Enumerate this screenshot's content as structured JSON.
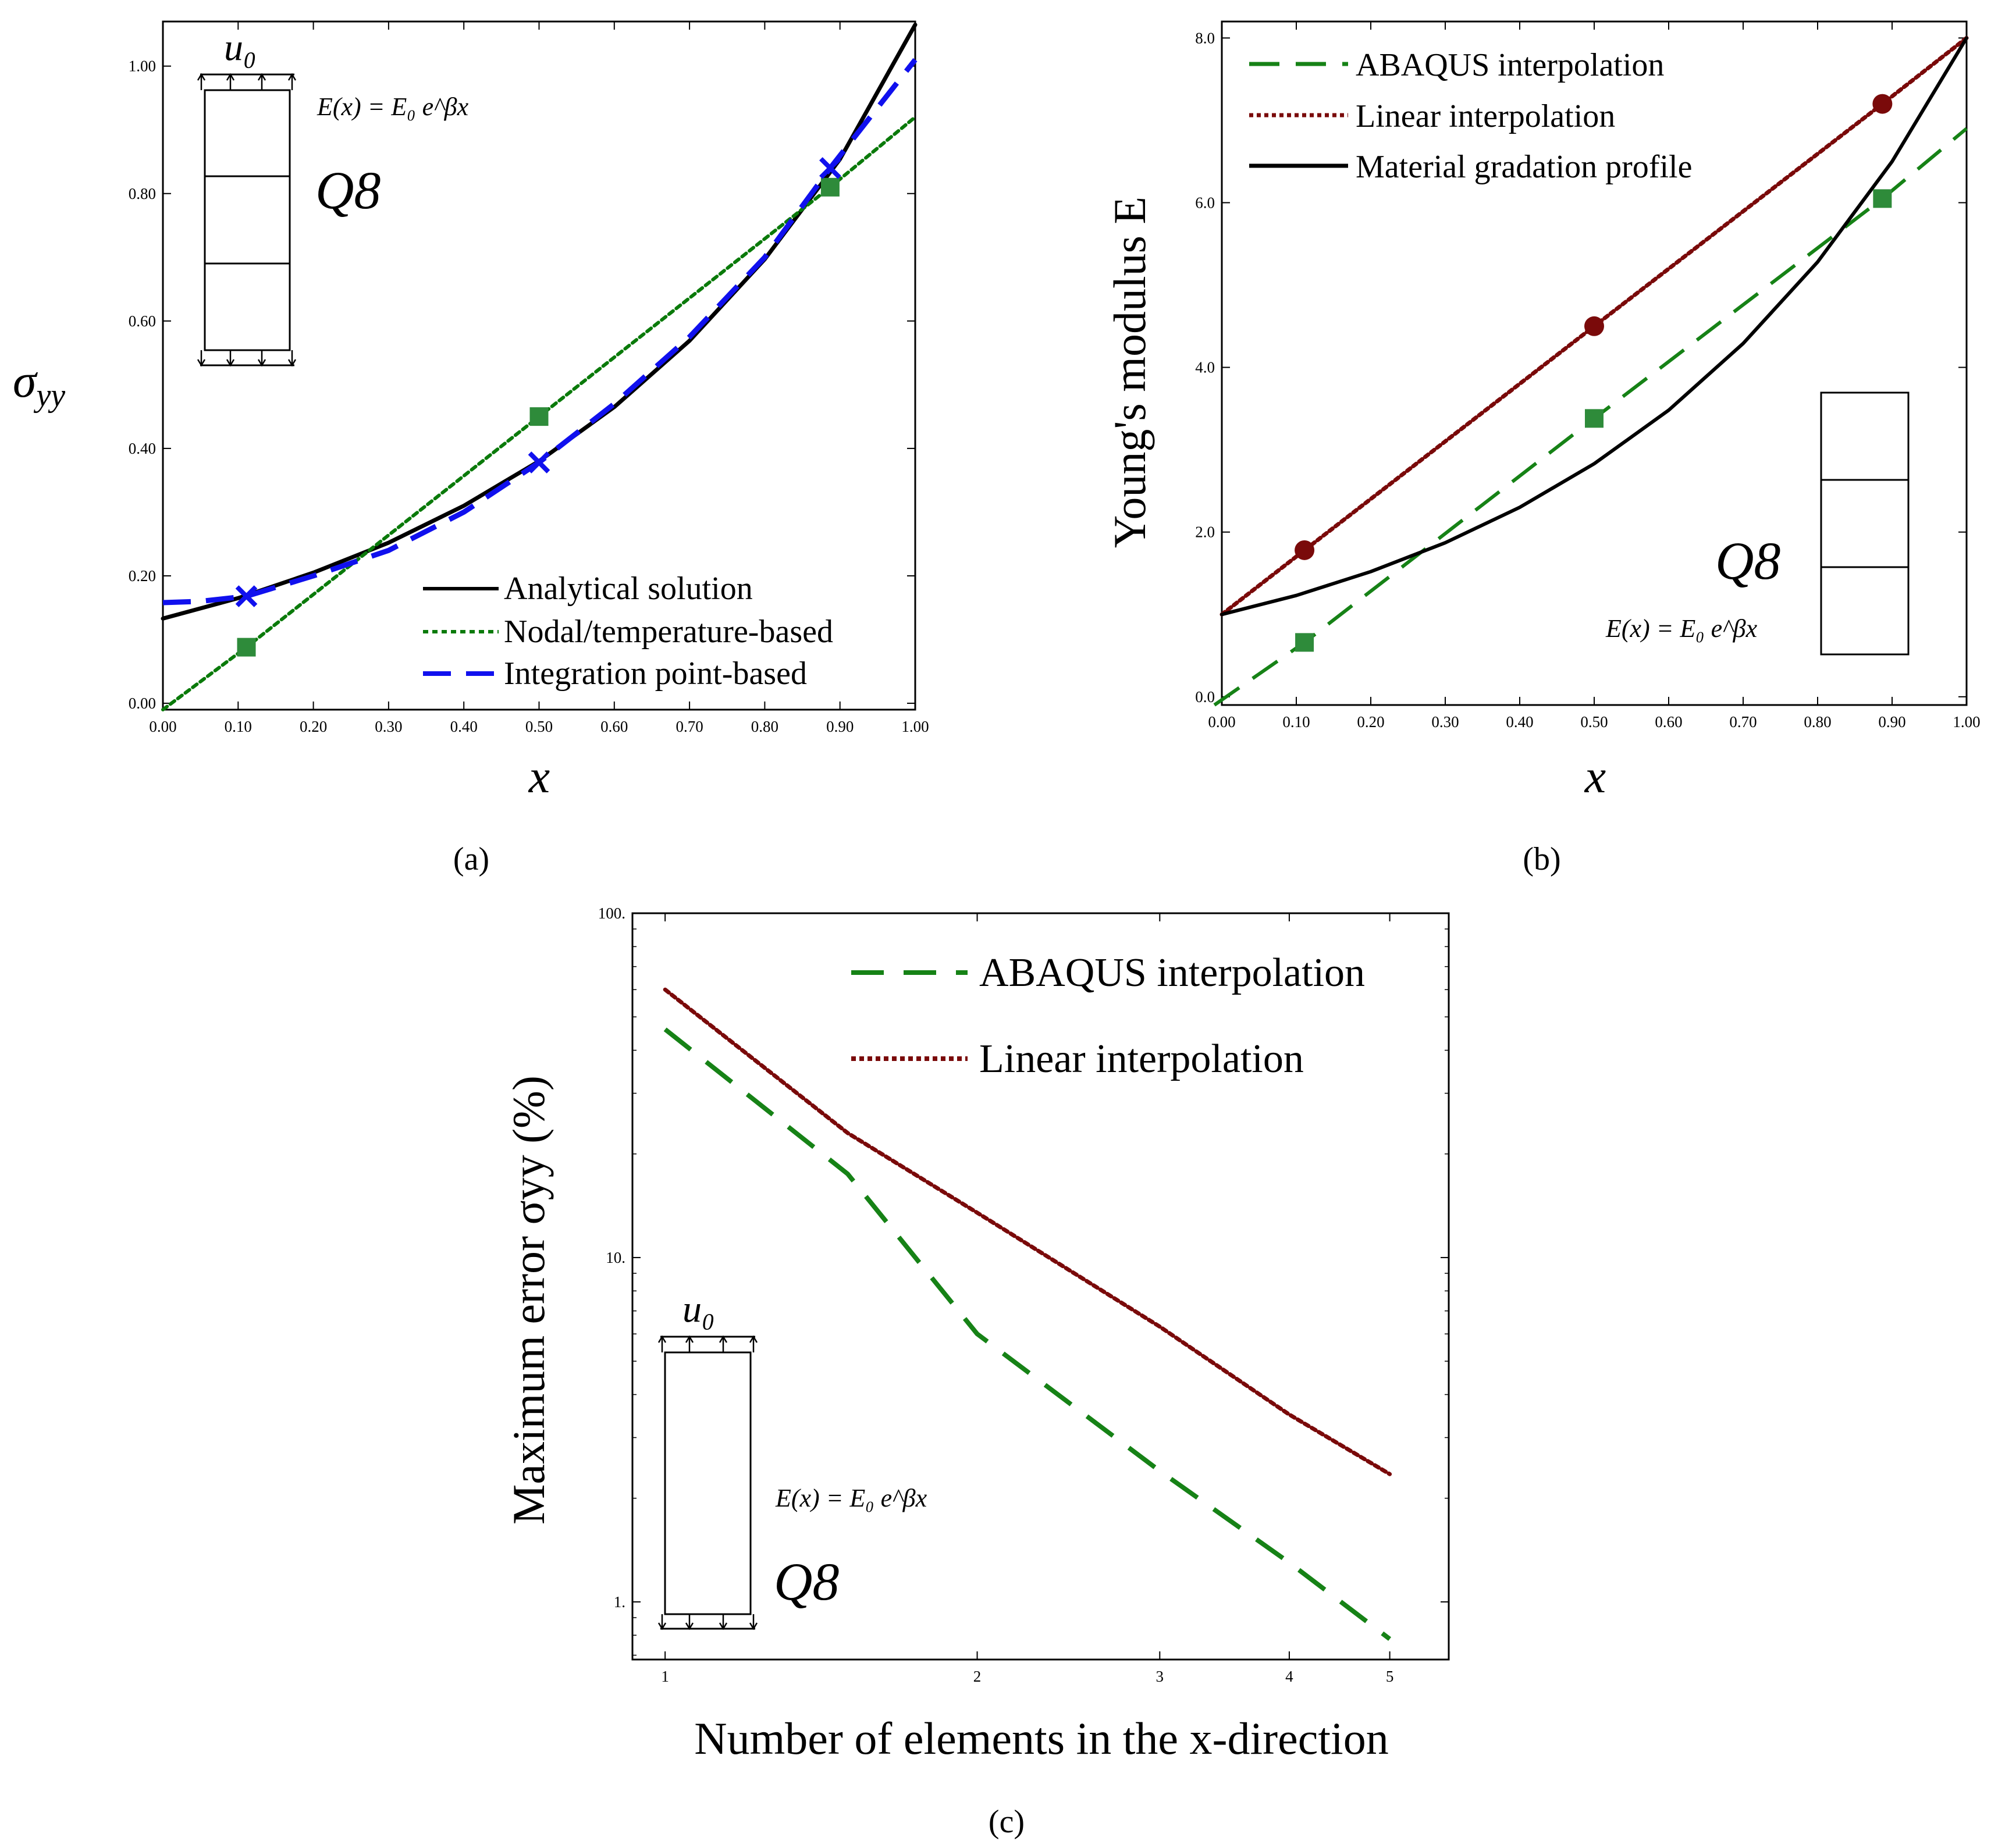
{
  "colors": {
    "analytical": "#000000",
    "nodal": "#0a7a0a",
    "integration": "#1010ee",
    "abaqus": "#168216",
    "linear": "#7a0a0a",
    "marker_square": "#2e8b3a",
    "marker_circle": "#7a0a0a"
  },
  "chart_data": [
    {
      "panel": "(a)",
      "type": "line",
      "xlabel": "x",
      "ylabel": "σyy",
      "xlim": [
        0,
        1
      ],
      "ylim": [
        -0.01,
        1.07
      ],
      "x_ticks": [
        0,
        0.1,
        0.2,
        0.3,
        0.4,
        0.5,
        0.6,
        0.7,
        0.8,
        0.9,
        1.0
      ],
      "x_tick_labels": [
        "0.00",
        "0.10",
        "0.20",
        "0.30",
        "0.40",
        "0.50",
        "0.60",
        "0.70",
        "0.80",
        "0.90",
        "1.00"
      ],
      "y_ticks": [
        0,
        0.2,
        0.4,
        0.6,
        0.8,
        1.0
      ],
      "y_tick_labels": [
        "0.00",
        "0.20",
        "0.40",
        "0.60",
        "0.80",
        "1.00"
      ],
      "legend_position": "bottom-right",
      "formula": "E(x) = E₀ e^βx",
      "element_label": "Q8",
      "load_label": "u₀",
      "series": [
        {
          "name": "Analytical solution",
          "style": "solid",
          "color_key": "analytical",
          "x": [
            0,
            0.1,
            0.2,
            0.3,
            0.4,
            0.5,
            0.6,
            0.7,
            0.8,
            0.9,
            1.0
          ],
          "y": [
            0.133,
            0.165,
            0.205,
            0.252,
            0.31,
            0.38,
            0.465,
            0.569,
            0.697,
            0.854,
            1.065
          ]
        },
        {
          "name": "Nodal/temperature-based",
          "style": "dotted",
          "color_key": "nodal",
          "x": [
            0,
            0.111,
            0.5,
            0.887,
            1.0
          ],
          "y": [
            -0.01,
            0.088,
            0.45,
            0.81,
            0.92
          ],
          "markers": {
            "shape": "square",
            "x": [
              0.111,
              0.5,
              0.887
            ],
            "y": [
              0.088,
              0.45,
              0.81
            ]
          }
        },
        {
          "name": "Integration point-based",
          "style": "dashed",
          "color_key": "integration",
          "x": [
            0,
            0.05,
            0.111,
            0.2,
            0.3,
            0.4,
            0.5,
            0.6,
            0.7,
            0.8,
            0.887,
            1.0
          ],
          "y": [
            0.158,
            0.16,
            0.168,
            0.2,
            0.24,
            0.3,
            0.378,
            0.47,
            0.575,
            0.7,
            0.84,
            1.01
          ],
          "markers": {
            "shape": "x",
            "x": [
              0.111,
              0.5,
              0.887
            ],
            "y": [
              0.168,
              0.378,
              0.84
            ]
          }
        }
      ]
    },
    {
      "panel": "(b)",
      "type": "line",
      "xlabel": "x",
      "ylabel": "Young's modulus E",
      "xlim": [
        0,
        1
      ],
      "ylim": [
        -0.1,
        8.2
      ],
      "x_ticks": [
        0,
        0.1,
        0.2,
        0.3,
        0.4,
        0.5,
        0.6,
        0.7,
        0.8,
        0.9,
        1.0
      ],
      "x_tick_labels": [
        "0.00",
        "0.10",
        "0.20",
        "0.30",
        "0.40",
        "0.50",
        "0.60",
        "0.70",
        "0.80",
        "0.90",
        "1.00"
      ],
      "y_ticks": [
        0,
        2,
        4,
        6,
        8
      ],
      "y_tick_labels": [
        "0.0",
        "2.0",
        "4.0",
        "6.0",
        "8.0"
      ],
      "legend_position": "top-left",
      "formula": "E(x) = E₀ e^βx",
      "element_label": "Q8",
      "series": [
        {
          "name": "ABAQUS interpolation",
          "style": "dashed",
          "color_key": "abaqus",
          "x": [
            -0.01,
            0.111,
            0.5,
            0.887,
            1.0
          ],
          "y": [
            -0.1,
            0.66,
            3.38,
            6.05,
            6.9
          ],
          "markers": {
            "shape": "square",
            "x": [
              0.111,
              0.5,
              0.887
            ],
            "y": [
              0.66,
              3.38,
              6.05
            ]
          }
        },
        {
          "name": "Linear interpolation",
          "style": "dotted",
          "color_key": "linear",
          "x": [
            0,
            0.111,
            0.5,
            0.887,
            1.0
          ],
          "y": [
            1.0,
            1.78,
            4.5,
            7.2,
            8.0
          ],
          "markers": {
            "shape": "circle",
            "x": [
              0.111,
              0.5,
              0.887
            ],
            "y": [
              1.78,
              4.5,
              7.2
            ]
          }
        },
        {
          "name": "Material gradation profile",
          "style": "solid",
          "color_key": "analytical",
          "x": [
            0,
            0.1,
            0.2,
            0.3,
            0.4,
            0.5,
            0.6,
            0.7,
            0.8,
            0.9,
            1.0
          ],
          "y": [
            1.0,
            1.23,
            1.52,
            1.87,
            2.3,
            2.83,
            3.48,
            4.29,
            5.28,
            6.5,
            8.0
          ]
        }
      ]
    },
    {
      "panel": "(c)",
      "type": "line",
      "scale": "log-log",
      "xlabel": "Number of elements in the x-direction",
      "ylabel": "Maximum error σyy (%)",
      "xlim": [
        0.93,
        5.7
      ],
      "ylim": [
        0.68,
        100
      ],
      "x_ticks": [
        1,
        2,
        3,
        4,
        5
      ],
      "x_tick_labels": [
        "1",
        "2",
        "3",
        "4",
        "5"
      ],
      "y_ticks": [
        1,
        10,
        100
      ],
      "y_tick_labels": [
        "1.",
        "10.",
        "100."
      ],
      "legend_position": "top-right",
      "formula": "E(x) = E₀ e^βx",
      "element_label": "Q8",
      "load_label": "u₀",
      "series": [
        {
          "name": "ABAQUS interpolation",
          "style": "dashed",
          "color_key": "abaqus",
          "x": [
            1,
            1.5,
            2,
            3,
            4,
            5
          ],
          "y": [
            46,
            17.5,
            6.0,
            2.4,
            1.3,
            0.78
          ]
        },
        {
          "name": "Linear interpolation",
          "style": "dotted",
          "color_key": "linear",
          "x": [
            1,
            1.5,
            2,
            3,
            4,
            5
          ],
          "y": [
            60,
            23,
            13.5,
            6.3,
            3.5,
            2.35
          ]
        }
      ]
    }
  ],
  "panel_labels": {
    "a": "(a)",
    "b": "(b)",
    "c": "(c)"
  }
}
